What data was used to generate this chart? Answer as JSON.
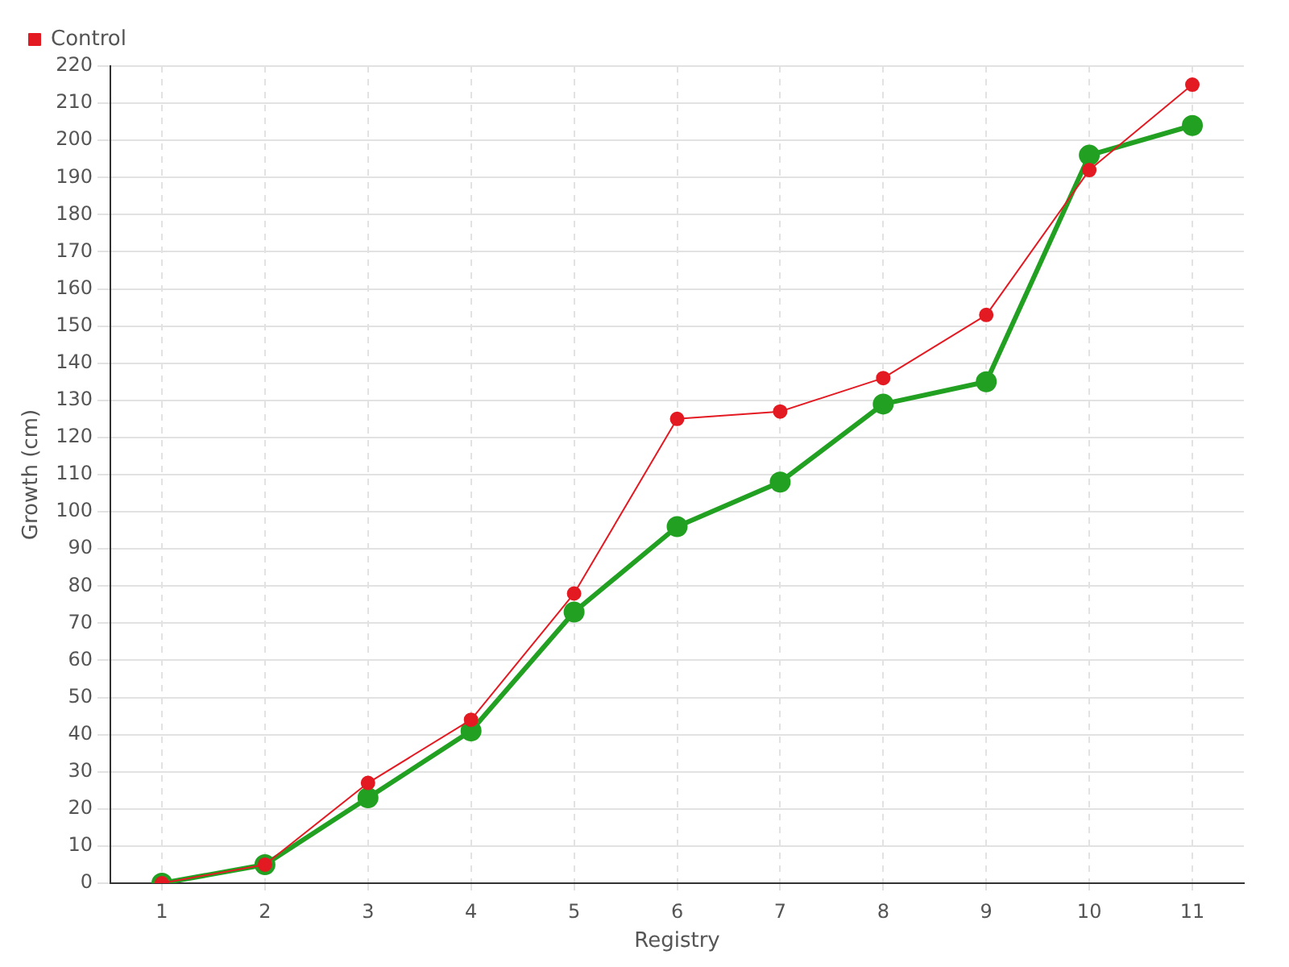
{
  "chart_data": {
    "type": "line",
    "xlabel": "Registry",
    "ylabel": "Growth (cm)",
    "categories": [
      "1",
      "2",
      "3",
      "4",
      "5",
      "6",
      "7",
      "8",
      "9",
      "10",
      "11"
    ],
    "series": [
      {
        "color": "#22a022",
        "values": [
          0,
          5,
          23,
          41,
          73,
          96,
          108,
          129,
          135,
          196,
          204
        ]
      },
      {
        "name": "Control",
        "color": "#e31a22",
        "values": [
          0,
          5,
          27,
          44,
          78,
          125,
          127,
          136,
          153,
          192,
          215
        ]
      }
    ],
    "ylim": [
      0,
      220
    ],
    "yticks": [
      0,
      10,
      20,
      30,
      40,
      50,
      60,
      70,
      80,
      90,
      100,
      110,
      120,
      130,
      140,
      150,
      160,
      170,
      180,
      190,
      200,
      210,
      220
    ],
    "grid": true,
    "legend": "top left",
    "marker": "circle",
    "line_style": "solid"
  }
}
